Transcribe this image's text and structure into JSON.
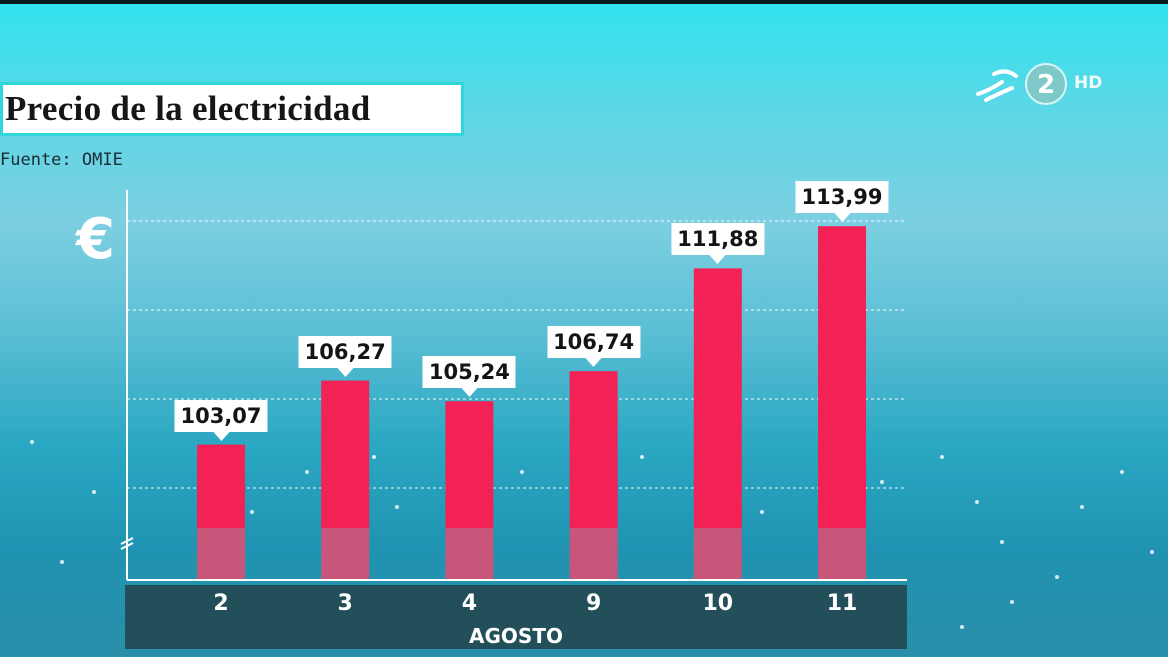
{
  "title": "Precio de la electricidad",
  "source": "Fuente: OMIE",
  "unit_symbol": "€",
  "channel": {
    "number": "2",
    "quality": "HD"
  },
  "colors": {
    "bar": "#f22256",
    "bar_base": "#c8567a",
    "axis": "#ffffff",
    "label_bg": "#ffffff"
  },
  "chart_data": {
    "type": "bar",
    "title": "Precio de la electricidad",
    "source": "Fuente: OMIE",
    "ylabel": "€",
    "xlabel": "AGOSTO",
    "categories": [
      "2",
      "3",
      "4",
      "9",
      "10",
      "11"
    ],
    "values": [
      103.07,
      106.27,
      105.24,
      106.74,
      111.88,
      113.99
    ],
    "value_labels": [
      "103,07",
      "106,27",
      "105,24",
      "106,74",
      "111,88",
      "113,99"
    ],
    "ylim": [
      98.9,
      115.8
    ],
    "axis_break": true,
    "grid": true,
    "legend": "none"
  }
}
